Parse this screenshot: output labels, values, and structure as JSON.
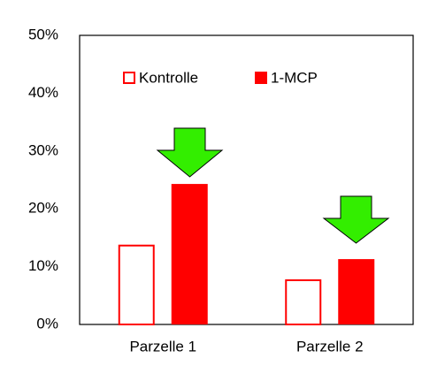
{
  "chart_data": {
    "type": "bar",
    "categories": [
      "Parzelle 1",
      "Parzelle 2"
    ],
    "series": [
      {
        "name": "Kontrolle",
        "color": "#ff0000",
        "outline": true,
        "values": [
          13.8,
          7.8
        ]
      },
      {
        "name": "1-MCP",
        "color": "#ff0000",
        "outline": false,
        "values": [
          24.3,
          11.3
        ]
      }
    ],
    "ylim": [
      0,
      50
    ],
    "yticks": [
      {
        "value": 0,
        "label": "0%"
      },
      {
        "value": 10,
        "label": "10%"
      },
      {
        "value": 20,
        "label": "20%"
      },
      {
        "value": 30,
        "label": "30%"
      },
      {
        "value": 40,
        "label": "40%"
      },
      {
        "value": 50,
        "label": "50%"
      }
    ],
    "grid": false
  }
}
